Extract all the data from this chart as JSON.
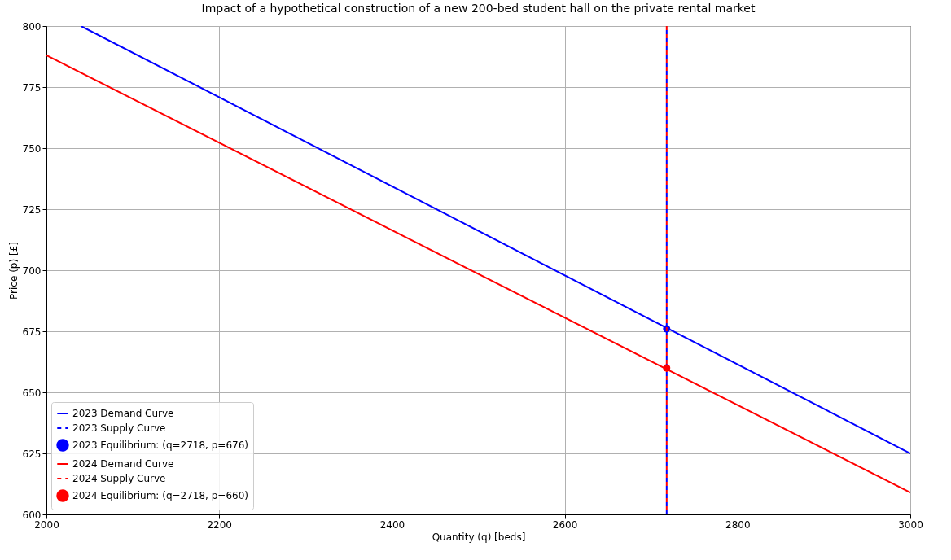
{
  "chart_data": {
    "type": "line",
    "title": "Impact of a hypothetical construction of a new 200-bed student hall on the private rental market",
    "xlabel": "Quantity (q) [beds]",
    "ylabel": "Price (p) [£]",
    "xlim": [
      2000,
      3000
    ],
    "xticks": [
      2000,
      2200,
      2400,
      2600,
      2800,
      3000
    ],
    "ylim": [
      600,
      800
    ],
    "yticks": [
      600,
      625,
      650,
      675,
      700,
      725,
      750,
      775,
      800
    ],
    "grid": true,
    "legend": "bottom left",
    "series": [
      {
        "name": "2023 Demand Curve",
        "line_style": "solid",
        "color": "#0000ff",
        "x": [
          2040,
          3000
        ],
        "values": [
          800,
          625
        ]
      },
      {
        "name": "2023 Supply Curve",
        "line_style": "dashed",
        "color": "#0000ff",
        "x": [
          2718,
          2718
        ],
        "values": [
          600,
          800
        ]
      },
      {
        "name": "2023 Equilibrium: (q=2718, p=676)",
        "type": "scatter",
        "marker": "circle",
        "color": "#0000ff",
        "x": [
          2718
        ],
        "values": [
          676
        ]
      },
      {
        "name": "2024 Demand Curve",
        "line_style": "solid",
        "color": "#ff0000",
        "x": [
          2000,
          3000
        ],
        "values": [
          788,
          609
        ]
      },
      {
        "name": "2024 Supply Curve",
        "line_style": "dashed",
        "color": "#ff0000",
        "x": [
          2718,
          2718
        ],
        "values": [
          600,
          800
        ]
      },
      {
        "name": "2024 Equilibrium: (q=2718, p=660)",
        "type": "scatter",
        "marker": "circle",
        "color": "#ff0000",
        "x": [
          2718
        ],
        "values": [
          660
        ]
      }
    ]
  }
}
